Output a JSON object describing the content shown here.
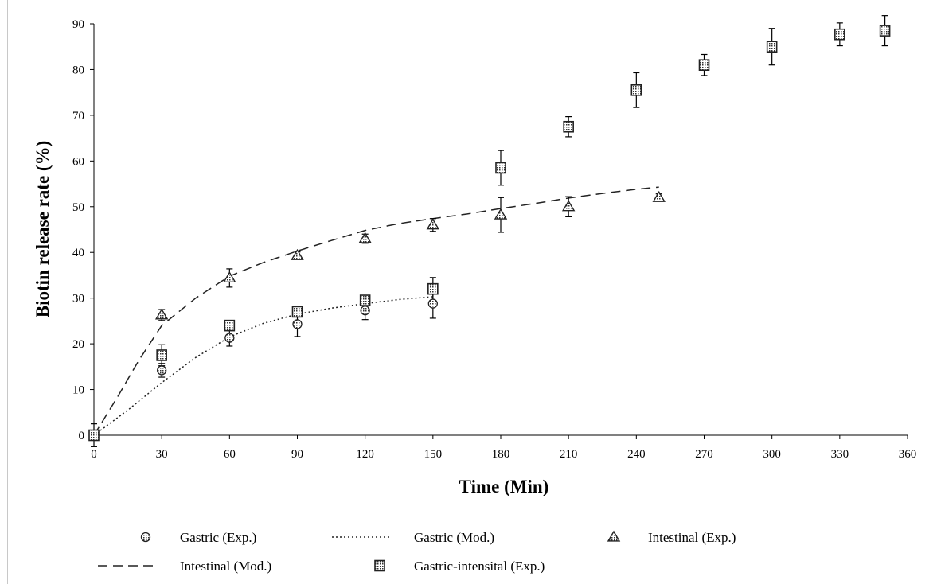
{
  "chart_data": {
    "type": "scatter",
    "xlabel": "Time (Min)",
    "ylabel": "Biotin release rate (%)",
    "xlim": [
      0,
      360
    ],
    "ylim": [
      0,
      90
    ],
    "x_ticks": [
      0,
      30,
      60,
      90,
      120,
      150,
      180,
      210,
      240,
      270,
      300,
      330,
      360
    ],
    "y_ticks": [
      0,
      10,
      20,
      30,
      40,
      50,
      60,
      70,
      80,
      90
    ],
    "grid": false,
    "legend_position": "bottom",
    "series": [
      {
        "name": "Gastric (Exp.)",
        "kind": "points",
        "marker": "circle",
        "points": [
          {
            "x": 0,
            "y": 0,
            "err": 0
          },
          {
            "x": 30,
            "y": 14.2,
            "err": 1.5
          },
          {
            "x": 60,
            "y": 21.3,
            "err": 1.8
          },
          {
            "x": 90,
            "y": 24.3,
            "err": 2.7
          },
          {
            "x": 120,
            "y": 27.3,
            "err": 2.0
          },
          {
            "x": 150,
            "y": 28.8,
            "err": 3.2
          }
        ]
      },
      {
        "name": "Gastric (Mod.)",
        "kind": "line",
        "dash": "dotted",
        "points": [
          {
            "x": 0,
            "y": 0
          },
          {
            "x": 15,
            "y": 5.5
          },
          {
            "x": 30,
            "y": 11.5
          },
          {
            "x": 45,
            "y": 17.0
          },
          {
            "x": 60,
            "y": 21.5
          },
          {
            "x": 75,
            "y": 24.5
          },
          {
            "x": 90,
            "y": 26.5
          },
          {
            "x": 105,
            "y": 27.8
          },
          {
            "x": 120,
            "y": 28.8
          },
          {
            "x": 135,
            "y": 29.7
          },
          {
            "x": 150,
            "y": 30.3
          }
        ]
      },
      {
        "name": "Intestinal (Exp.)",
        "kind": "points",
        "marker": "triangle",
        "points": [
          {
            "x": 30,
            "y": 26.3,
            "err": 1.2
          },
          {
            "x": 60,
            "y": 34.4,
            "err": 2.0
          },
          {
            "x": 90,
            "y": 39.3,
            "err": 0.8
          },
          {
            "x": 120,
            "y": 43.0,
            "err": 1.0
          },
          {
            "x": 150,
            "y": 46.0,
            "err": 1.4
          },
          {
            "x": 180,
            "y": 48.2,
            "err": 3.8
          },
          {
            "x": 210,
            "y": 50.0,
            "err": 2.2
          },
          {
            "x": 250,
            "y": 52.0,
            "err": 0.8
          }
        ]
      },
      {
        "name": "Intestinal (Mod.)",
        "kind": "line",
        "dash": "dashed",
        "points": [
          {
            "x": 0,
            "y": 0
          },
          {
            "x": 10,
            "y": 8.0
          },
          {
            "x": 20,
            "y": 16.5
          },
          {
            "x": 30,
            "y": 24.0
          },
          {
            "x": 45,
            "y": 30.0
          },
          {
            "x": 60,
            "y": 34.8
          },
          {
            "x": 75,
            "y": 37.8
          },
          {
            "x": 90,
            "y": 40.3
          },
          {
            "x": 105,
            "y": 42.6
          },
          {
            "x": 120,
            "y": 44.8
          },
          {
            "x": 135,
            "y": 46.3
          },
          {
            "x": 150,
            "y": 47.4
          },
          {
            "x": 165,
            "y": 48.4
          },
          {
            "x": 180,
            "y": 49.6
          },
          {
            "x": 195,
            "y": 50.7
          },
          {
            "x": 210,
            "y": 51.9
          },
          {
            "x": 225,
            "y": 52.9
          },
          {
            "x": 240,
            "y": 53.8
          },
          {
            "x": 250,
            "y": 54.3
          }
        ]
      },
      {
        "name": "Gastric-intensital (Exp.)",
        "kind": "points",
        "marker": "square",
        "points": [
          {
            "x": 0,
            "y": 0,
            "err": 2.5
          },
          {
            "x": 30,
            "y": 17.5,
            "err": 2.3
          },
          {
            "x": 60,
            "y": 24.0,
            "err": 1.0
          },
          {
            "x": 90,
            "y": 27.0,
            "err": 1.0
          },
          {
            "x": 120,
            "y": 29.5,
            "err": 1.0
          },
          {
            "x": 150,
            "y": 32.0,
            "err": 2.5
          },
          {
            "x": 180,
            "y": 58.5,
            "err": 3.8
          },
          {
            "x": 210,
            "y": 67.5,
            "err": 2.2
          },
          {
            "x": 240,
            "y": 75.5,
            "err": 3.8
          },
          {
            "x": 270,
            "y": 81.0,
            "err": 2.3
          },
          {
            "x": 300,
            "y": 85.0,
            "err": 4.0
          },
          {
            "x": 330,
            "y": 87.7,
            "err": 2.5
          },
          {
            "x": 350,
            "y": 88.5,
            "err": 3.3
          }
        ]
      }
    ]
  },
  "colors": {
    "axis": "#000000",
    "marker_fill": "#d8d8d8",
    "marker_stroke": "#222222",
    "line": "#222222",
    "background": "#ffffff"
  }
}
